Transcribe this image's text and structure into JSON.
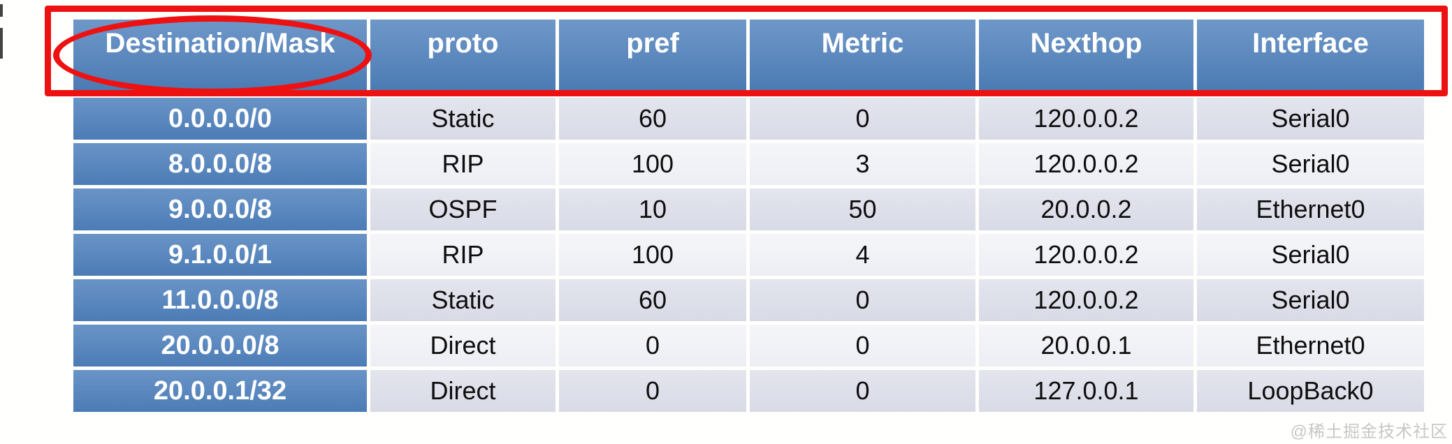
{
  "slide": {
    "background": "#FFFFFD",
    "watermark": {
      "text": "@稀土掘金技术社区",
      "color": "#C7C7C7"
    }
  },
  "theme": {
    "header_blue": "#4F81BD",
    "band_dark": "#D8DAE6",
    "band_light": "#EDEEF4",
    "annotation_red": "#EE1111",
    "header_text_color": "#FFFFFF",
    "cell_text_color": "#0E0E0E"
  },
  "annotations": {
    "ellipse_icon": "red-ellipse-highlight",
    "rectangle_icon": "red-rectangle-highlight"
  },
  "table": {
    "columns": [
      "Destination/Mask",
      "proto",
      "pref",
      "Metric",
      "Nexthop",
      "Interface"
    ],
    "rows": [
      [
        "0.0.0.0/0",
        "Static",
        "60",
        "0",
        "120.0.0.2",
        "Serial0"
      ],
      [
        "8.0.0.0/8",
        "RIP",
        "100",
        "3",
        "120.0.0.2",
        "Serial0"
      ],
      [
        "9.0.0.0/8",
        "OSPF",
        "10",
        "50",
        "20.0.0.2",
        "Ethernet0"
      ],
      [
        "9.1.0.0/1",
        "RIP",
        "100",
        "4",
        "120.0.0.2",
        "Serial0"
      ],
      [
        "11.0.0.0/8",
        "Static",
        "60",
        "0",
        "120.0.0.2",
        "Serial0"
      ],
      [
        "20.0.0.0/8",
        "Direct",
        "0",
        "0",
        "20.0.0.1",
        "Ethernet0"
      ],
      [
        "20.0.0.1/32",
        "Direct",
        "0",
        "0",
        "127.0.0.1",
        "LoopBack0"
      ]
    ]
  }
}
